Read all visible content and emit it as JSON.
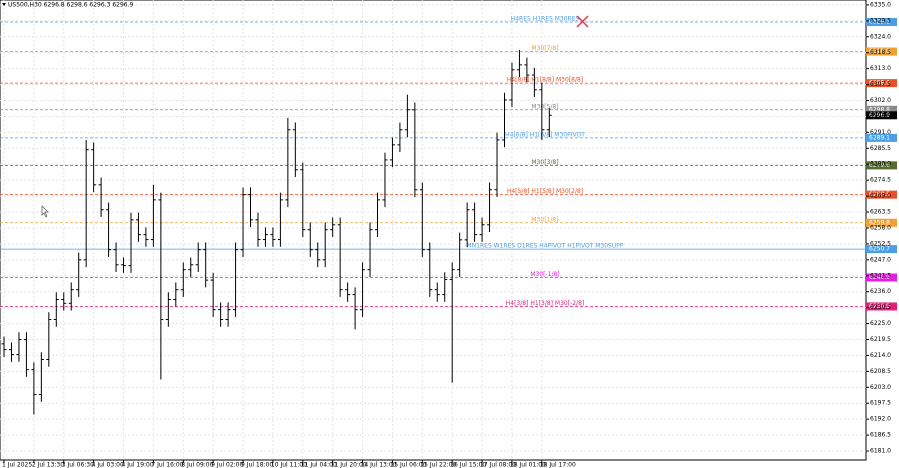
{
  "chart_data": {
    "type": "ohlc",
    "title": "US500,H30  6296.8 6298.6 6296.3 6296.9",
    "categories": [
      "1 Jul 2025",
      null,
      null,
      null,
      "2 Jul 13:30",
      null,
      null,
      null,
      "3 Jul 06:30",
      null,
      null,
      null,
      "4 Jul 03:00",
      null,
      null,
      null,
      "4 Jul 19:00",
      null,
      null,
      null,
      "7 Jul 16:00",
      null,
      null,
      null,
      "8 Jul 09:00",
      null,
      null,
      null,
      "9 Jul 02:00",
      null,
      null,
      null,
      "9 Jul 18:00",
      null,
      null,
      null,
      "10 Jul 11:00",
      null,
      null,
      null,
      "11 Jul 04:00",
      null,
      null,
      null,
      "11 Jul 20:00",
      null,
      null,
      null,
      "14 Jul 13:00",
      null,
      null,
      null,
      "15 Jul 06:00",
      null,
      null,
      null,
      "15 Jul 22:00",
      null,
      null,
      null,
      "16 Jul 15:00",
      null,
      null,
      null,
      "17 Jul 08:00",
      null,
      null,
      null,
      "18 Jul 01:00",
      null,
      null,
      null,
      "18 Jul 17:00",
      null
    ],
    "open": [
      6218.0,
      6216.0,
      6214.3,
      6219.5,
      6209.1,
      6200.5,
      6212.6,
      6226.4,
      6233.3,
      6232.0,
      6236.7,
      6247.0,
      6285.0,
      6272.9,
      6264.3,
      6250.5,
      6245.3,
      6245.0,
      6260.8,
      6255.7,
      6254.0,
      6267.7,
      6226.4,
      6233.3,
      6236.7,
      6243.6,
      6245.3,
      6250.5,
      6240.0,
      6229.8,
      6226.4,
      6229.8,
      6250.5,
      6269.5,
      6260.8,
      6254.0,
      6255.7,
      6254.0,
      6267.7,
      6291.9,
      6278.1,
      6257.4,
      6250.5,
      6247.0,
      6257.4,
      6259.1,
      6236.7,
      6235.0,
      6229.8,
      6243.6,
      6257.4,
      6267.7,
      6281.5,
      6286.7,
      6291.9,
      6298.8,
      6271.2,
      6250.5,
      6236.7,
      6235.0,
      6240.2,
      6243.6,
      6253.9,
      6264.3,
      6255.7,
      6259.1,
      6271.2,
      6288.4,
      6302.2,
      6312.6,
      6314.3,
      6310.8,
      6305.7,
      6291.9
    ],
    "high": [
      6220.5,
      6218.5,
      6222.0,
      6222.0,
      6211.6,
      6215.1,
      6228.9,
      6235.8,
      6235.8,
      6239.2,
      6249.5,
      6288.4,
      6287.5,
      6275.4,
      6266.8,
      6253.0,
      6247.8,
      6263.3,
      6263.3,
      6258.2,
      6272.9,
      6270.2,
      6235.8,
      6239.2,
      6246.1,
      6247.8,
      6253.0,
      6253.0,
      6242.5,
      6232.3,
      6232.3,
      6253.0,
      6272.0,
      6272.0,
      6263.3,
      6258.2,
      6258.2,
      6270.2,
      6296.0,
      6294.4,
      6280.6,
      6259.9,
      6253.0,
      6259.9,
      6261.6,
      6261.6,
      6239.2,
      6237.5,
      6246.1,
      6259.9,
      6270.2,
      6284.0,
      6289.2,
      6294.4,
      6304.0,
      6301.3,
      6273.7,
      6253.0,
      6239.2,
      6242.7,
      6246.1,
      6256.4,
      6266.8,
      6266.8,
      6261.6,
      6273.7,
      6290.9,
      6304.7,
      6315.1,
      6319.5,
      6316.8,
      6313.3,
      6308.2,
      6299.4
    ],
    "low": [
      6213.5,
      6211.8,
      6211.8,
      6206.6,
      6193.6,
      6198.0,
      6210.1,
      6223.9,
      6229.5,
      6229.5,
      6234.2,
      6244.5,
      6270.4,
      6261.8,
      6248.0,
      6242.8,
      6242.5,
      6242.5,
      6253.2,
      6251.5,
      6251.5,
      6205.7,
      6223.9,
      6230.8,
      6234.2,
      6241.1,
      6242.8,
      6237.5,
      6227.3,
      6223.9,
      6223.9,
      6227.3,
      6248.0,
      6258.3,
      6251.5,
      6251.5,
      6251.5,
      6251.5,
      6265.2,
      6275.6,
      6254.9,
      6248.0,
      6244.5,
      6244.5,
      6254.9,
      6234.2,
      6232.5,
      6223.0,
      6227.3,
      6241.1,
      6254.9,
      6265.2,
      6279.0,
      6284.2,
      6289.4,
      6268.7,
      6248.0,
      6234.2,
      6232.5,
      6232.5,
      6204.6,
      6241.1,
      6251.4,
      6253.2,
      6253.2,
      6256.6,
      6268.7,
      6285.9,
      6299.7,
      6310.1,
      6308.3,
      6303.2,
      6288.4,
      6289.4
    ],
    "close": [
      6216.0,
      6214.3,
      6219.5,
      6209.1,
      6200.5,
      6212.6,
      6226.4,
      6233.3,
      6232.0,
      6236.7,
      6247.0,
      6285.0,
      6272.9,
      6264.3,
      6250.5,
      6245.3,
      6245.0,
      6260.8,
      6255.7,
      6254.0,
      6267.7,
      6226.4,
      6233.3,
      6236.7,
      6243.6,
      6245.3,
      6250.5,
      6240.0,
      6229.8,
      6226.4,
      6229.8,
      6250.5,
      6269.5,
      6260.8,
      6254.0,
      6255.7,
      6254.0,
      6267.7,
      6291.9,
      6278.1,
      6257.4,
      6250.5,
      6247.0,
      6257.4,
      6259.1,
      6236.7,
      6235.0,
      6229.8,
      6243.6,
      6257.4,
      6267.7,
      6281.5,
      6286.7,
      6291.9,
      6298.8,
      6271.2,
      6250.5,
      6236.7,
      6235.0,
      6240.2,
      6243.6,
      6253.9,
      6264.3,
      6255.7,
      6259.1,
      6271.2,
      6288.4,
      6302.2,
      6312.6,
      6314.3,
      6310.8,
      6305.7,
      6291.9,
      6296.9
    ],
    "bar_color": "#000000",
    "current_price_color": "#000000",
    "ylim": [
      6177.9,
      6336.7
    ],
    "yticks": [
      {
        "value": 6181,
        "label": "6181.0"
      },
      6186.5,
      {
        "value": 6192,
        "label": "6192.0"
      },
      6197.5,
      {
        "value": 6203,
        "label": "6203.0"
      },
      6208.5,
      {
        "value": 6214,
        "label": "6214.0"
      },
      6219.5,
      {
        "value": 6225,
        "label": "6225.0"
      },
      6230.5,
      {
        "value": 6236,
        "label": "6236.0"
      },
      6241.5,
      {
        "value": 6247,
        "label": "6247.0"
      },
      6252.5,
      {
        "value": 6258,
        "label": "6258.0"
      },
      6263.5,
      {
        "value": 6269,
        "label": "6269.0"
      },
      6274.5,
      {
        "value": 6280,
        "label": "6280.0"
      },
      6285.5,
      {
        "value": 6291,
        "label": "6291.0"
      },
      6296.5,
      {
        "value": 6302,
        "label": "6302.0"
      },
      6307.5,
      {
        "value": 6313,
        "label": "6313.0"
      },
      6318.5,
      {
        "value": 6324,
        "label": "6324.0"
      },
      6329.5,
      {
        "value": 6335,
        "label": "6335.0"
      }
    ],
    "grid": true,
    "levels": [
      {
        "label": "H4RES H1RES M30RES",
        "value": 6329.1,
        "value_label": "6329.1",
        "color": "#4a9fe8",
        "style": "dashed"
      },
      {
        "label": "M30[7/8]",
        "value": 6318.9,
        "value_label": "6318.9",
        "color": "#f0a030",
        "style": "dashed"
      },
      {
        "label": "H4[8/8] H1[8/8] M30[8/8]",
        "value": 6308.0,
        "value_label": "6308.0",
        "color": "#e8502a",
        "style": "dashed"
      },
      {
        "label": "M30[5/8]",
        "value": 6298.8,
        "value_label": "6298.8",
        "color": "#8a8a8a",
        "style": "dashed"
      },
      {
        "label": "H4[6/8] H1[6/8] M30PIVOT",
        "value": 6289.1,
        "value_label": "6289.1",
        "color": "#4a9fe8",
        "style": "dashed"
      },
      {
        "label": "M30[3/8]",
        "value": 6279.6,
        "value_label": "6279.6",
        "color": "#556b2f",
        "style": "dashed"
      },
      {
        "label": "H4[5/8] H1[5/8] M30[2/8]",
        "value": 6269.5,
        "value_label": "6269.5",
        "color": "#e8502a",
        "style": "dashed"
      },
      {
        "label": "M30[1/8]",
        "value": 6259.8,
        "value_label": "6259.8",
        "color": "#f0a030",
        "style": "dashed"
      },
      {
        "label": "MN1RES W1RES D1RES H4PIVOT H1PIVOT M30SUPP",
        "value": 6250.7,
        "value_label": "6250.7",
        "color": "#4a9fe8",
        "style": "solid"
      },
      {
        "label": "M30[-1/8]",
        "value": 6240.9,
        "value_label": "6240.9",
        "color": "#e020e0",
        "style": "dashed"
      },
      {
        "label": "H4[3/8] H1[3/8] M30[-2/8]",
        "value": 6230.9,
        "value_label": "6230.9",
        "color": "#e0207a",
        "style": "dashed"
      }
    ]
  }
}
